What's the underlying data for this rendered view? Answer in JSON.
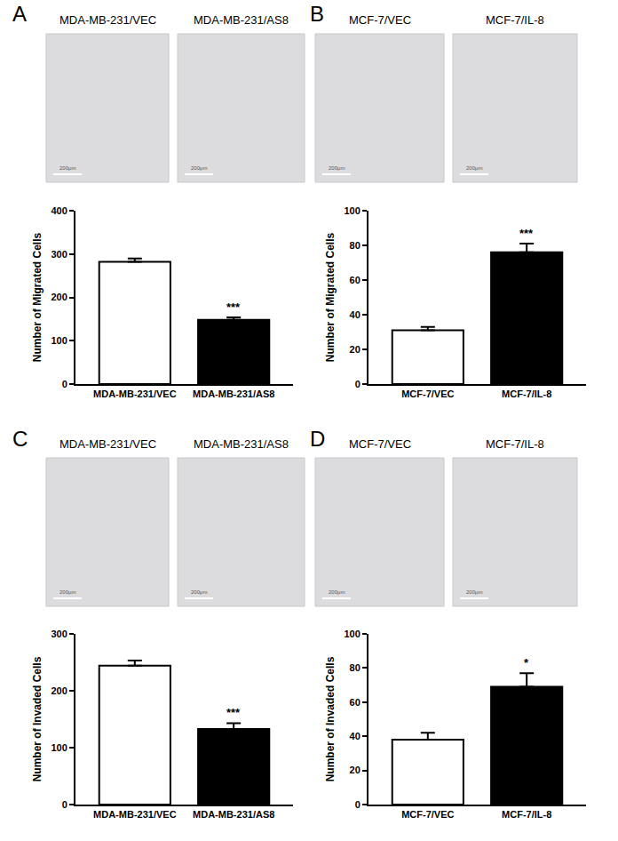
{
  "chart_data": [
    {
      "type": "bar",
      "panel": "A",
      "image_labels": [
        "MDA-MB-231/VEC",
        "MDA-MB-231/AS8"
      ],
      "scale_bar": "200μm",
      "categories": [
        "MDA-MB-231/VEC",
        "MDA-MB-231/AS8"
      ],
      "values": [
        282,
        148
      ],
      "errors": [
        8,
        6
      ],
      "colors": [
        "#ffffff",
        "#000000"
      ],
      "ylabel": "Number of Migrated Cells",
      "ylim": [
        0,
        400
      ],
      "yticks": [
        0,
        100,
        200,
        300,
        400
      ],
      "significance": "***"
    },
    {
      "type": "bar",
      "panel": "B",
      "image_labels": [
        "MCF-7/VEC",
        "MCF-7/IL-8"
      ],
      "scale_bar": "200μm",
      "categories": [
        "MCF-7/VEC",
        "MCF-7/IL-8"
      ],
      "values": [
        31,
        76
      ],
      "errors": [
        2,
        5
      ],
      "colors": [
        "#ffffff",
        "#000000"
      ],
      "ylabel": "Number of Migrated Cells",
      "ylim": [
        0,
        100
      ],
      "yticks": [
        0,
        20,
        40,
        60,
        80,
        100
      ],
      "significance": "***"
    },
    {
      "type": "bar",
      "panel": "C",
      "image_labels": [
        "MDA-MB-231/VEC",
        "MDA-MB-231/AS8"
      ],
      "scale_bar": "200μm",
      "categories": [
        "MDA-MB-231/VEC",
        "MDA-MB-231/AS8"
      ],
      "values": [
        244,
        133
      ],
      "errors": [
        9,
        10
      ],
      "colors": [
        "#ffffff",
        "#000000"
      ],
      "ylabel": "Number of Invaded Cells",
      "ylim": [
        0,
        300
      ],
      "yticks": [
        0,
        100,
        200,
        300
      ],
      "significance": "***"
    },
    {
      "type": "bar",
      "panel": "D",
      "image_labels": [
        "MCF-7/VEC",
        "MCF-7/IL-8"
      ],
      "scale_bar": "200μm",
      "categories": [
        "MCF-7/VEC",
        "MCF-7/IL-8"
      ],
      "values": [
        38,
        69
      ],
      "errors": [
        4,
        8
      ],
      "colors": [
        "#ffffff",
        "#000000"
      ],
      "ylabel": "Number of Invaded Cells",
      "ylim": [
        0,
        100
      ],
      "yticks": [
        0,
        20,
        40,
        60,
        80,
        100
      ],
      "significance": "*"
    }
  ]
}
